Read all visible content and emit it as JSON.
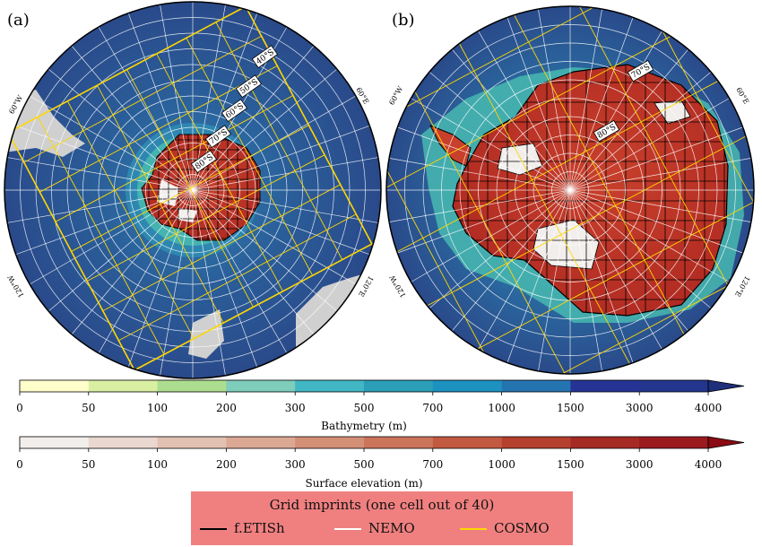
{
  "panels": [
    {
      "label": "(a)",
      "lat_labels": [
        "40°S",
        "50°S",
        "60°S",
        "70°S",
        "80°S"
      ],
      "lon_labels": [
        "60°W",
        "60°E",
        "120°W",
        "120°E"
      ]
    },
    {
      "label": "(b)",
      "lat_labels": [
        "70°S",
        "80°S"
      ],
      "lon_labels": [
        "60°W",
        "60°E",
        "120°W",
        "120°E"
      ]
    }
  ],
  "colorbars": [
    {
      "label": "Bathymetry (m)",
      "ticks": [
        "0",
        "50",
        "100",
        "200",
        "300",
        "500",
        "700",
        "1000",
        "1500",
        "3000",
        "4000"
      ],
      "colors": [
        "#ffffcc",
        "#d9f0a3",
        "#addd8e",
        "#7fcdbb",
        "#41b6c4",
        "#2c9fb8",
        "#1d91c0",
        "#2574b2",
        "#253494",
        "#23368e"
      ],
      "extend_color": "#1f2f7a"
    },
    {
      "label": "Surface elevation (m)",
      "ticks": [
        "0",
        "50",
        "100",
        "200",
        "300",
        "500",
        "700",
        "1000",
        "1500",
        "3000",
        "4000"
      ],
      "colors": [
        "#f2eeec",
        "#ead7cf",
        "#e3c1b2",
        "#dba894",
        "#d48f77",
        "#cc755b",
        "#c25a41",
        "#b5402e",
        "#a52a24",
        "#9a1a1e"
      ],
      "extend_color": "#8b0a14"
    }
  ],
  "legend": {
    "title": "Grid imprints (one cell out of 40)",
    "items": [
      {
        "label": "f.ETISh",
        "color": "#000000"
      },
      {
        "label": "NEMO",
        "color": "#ffffff"
      },
      {
        "label": "COSMO",
        "color": "#ffd700"
      }
    ]
  },
  "colors": {
    "ocean_deep": "#2a4a8a",
    "ocean_mid": "#2f7fb0",
    "ocean_shelf": "#48b8b0",
    "ice_sheet": "#b8342a",
    "ice_shelf": "#f2eeec",
    "land_other": "#d0d0d0",
    "cosmo": "#ffd700"
  }
}
